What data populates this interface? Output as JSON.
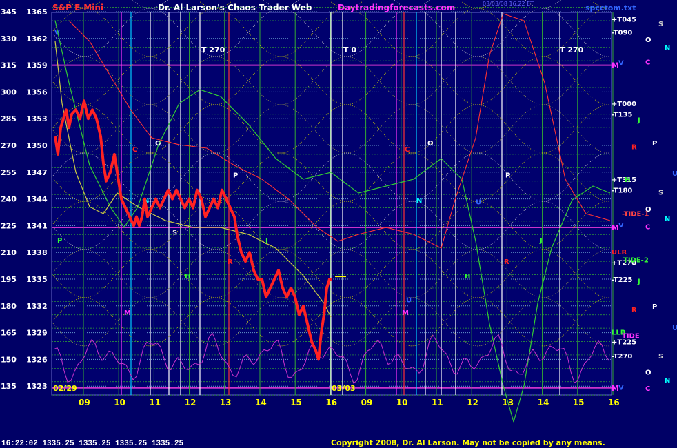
{
  "header": {
    "title_left": "S&P E-Mini",
    "title_center": "Dr. Al Larson's Chaos Trader Web",
    "title_site": "Daytradingforecasts.com",
    "title_right": "spcctom.txt",
    "timestamp": "03/03/08 16:22 ET"
  },
  "footer": {
    "quote": "16:22:02  1335.25 1335.25 1335.25 1335.25",
    "copyright": "Copyright 2008, Dr. Al Larson. May not be copied by any means."
  },
  "chart_data": {
    "type": "line",
    "x_ticks": [
      "09",
      "10",
      "11",
      "12",
      "13",
      "14",
      "15",
      "16",
      "09",
      "10",
      "11",
      "12",
      "13",
      "14",
      "15",
      "16"
    ],
    "date_labels": [
      "02/29",
      "03/03"
    ],
    "y_ticks": [
      {
        "angle": "345",
        "price": "1365"
      },
      {
        "angle": "330",
        "price": "1362"
      },
      {
        "angle": "315",
        "price": "1359"
      },
      {
        "angle": "300",
        "price": "1356"
      },
      {
        "angle": "285",
        "price": "1353"
      },
      {
        "angle": "270",
        "price": "1350"
      },
      {
        "angle": "255",
        "price": "1347"
      },
      {
        "angle": "240",
        "price": "1344"
      },
      {
        "angle": "225",
        "price": "1341"
      },
      {
        "angle": "210",
        "price": "1338"
      },
      {
        "angle": "195",
        "price": "1335"
      },
      {
        "angle": "180",
        "price": "1332"
      },
      {
        "angle": "165",
        "price": "1329"
      },
      {
        "angle": "150",
        "price": "1326"
      },
      {
        "angle": "135",
        "price": "1323"
      }
    ],
    "ylim": [
      1322,
      1366
    ],
    "vertical_labels": [
      "T 270",
      "T 0",
      "T 270"
    ],
    "right_labels": [
      {
        "text": "+T045",
        "price": 1364.2,
        "color": "#ffffff"
      },
      {
        "text": "-T090",
        "price": 1362.7,
        "color": "#ffffff"
      },
      {
        "text": "M",
        "price": 1359,
        "color": "#ff33ff"
      },
      {
        "text": "+T000",
        "price": 1354.7,
        "color": "#ffffff"
      },
      {
        "text": "-T135",
        "price": 1353.5,
        "color": "#ffffff"
      },
      {
        "text": "+T315",
        "price": 1346.2,
        "color": "#ffffff"
      },
      {
        "text": "-T180",
        "price": 1345.0,
        "color": "#ffffff"
      },
      {
        "text": "-TIDE-1",
        "price": 1342.4,
        "color": "#ff4444"
      },
      {
        "text": "M",
        "price": 1340.8,
        "color": "#ff33ff"
      },
      {
        "text": "ULR",
        "price": 1338.1,
        "color": "#ff2222"
      },
      {
        "text": "+T270",
        "price": 1336.9,
        "color": "#ffffff"
      },
      {
        "text": "TIDE-2",
        "price": 1337.2,
        "color": "#33ff33"
      },
      {
        "text": "-T225",
        "price": 1335.0,
        "color": "#ffffff"
      },
      {
        "text": "LLB",
        "price": 1329.1,
        "color": "#33ff33"
      },
      {
        "text": "TIDE",
        "price": 1328.7,
        "color": "#ff33ff"
      },
      {
        "text": "+T225",
        "price": 1328.0,
        "color": "#ffffff"
      },
      {
        "text": "-T270",
        "price": 1326.4,
        "color": "#ffffff"
      },
      {
        "text": "M",
        "price": 1322.8,
        "color": "#ff33ff"
      }
    ],
    "price_markers": [
      {
        "text": "O",
        "x": 225,
        "price": 1350.3,
        "color": "#ffffff"
      },
      {
        "text": "O",
        "x": 620,
        "price": 1350.3,
        "color": "#ffffff"
      },
      {
        "text": "P",
        "x": 338,
        "price": 1346.7,
        "color": "#ffffff"
      },
      {
        "text": "P",
        "x": 733,
        "price": 1346.7,
        "color": "#ffffff"
      },
      {
        "text": "N",
        "x": 208,
        "price": 1343.9,
        "color": "#00ffff"
      },
      {
        "text": "N",
        "x": 604,
        "price": 1343.9,
        "color": "#00ffff"
      },
      {
        "text": "C",
        "x": 192,
        "price": 1349.6,
        "color": "#ff2222"
      },
      {
        "text": "C",
        "x": 587,
        "price": 1349.6,
        "color": "#ff2222"
      },
      {
        "text": "S",
        "x": 250,
        "price": 1340.3,
        "color": "#dddddd"
      },
      {
        "text": "H",
        "x": 268,
        "price": 1335.4,
        "color": "#33ff33"
      },
      {
        "text": "H",
        "x": 674,
        "price": 1335.4,
        "color": "#33ff33"
      },
      {
        "text": "M",
        "x": 180,
        "price": 1331.3,
        "color": "#ff33ff"
      },
      {
        "text": "M",
        "x": 583,
        "price": 1331.3,
        "color": "#ff33ff"
      },
      {
        "text": "J",
        "x": 385,
        "price": 1339.4,
        "color": "#33ff33"
      },
      {
        "text": "J",
        "x": 783,
        "price": 1339.4,
        "color": "#33ff33"
      },
      {
        "text": "P",
        "x": 83,
        "price": 1339.4,
        "color": "#33ff33"
      },
      {
        "text": "R",
        "x": 330,
        "price": 1337.0,
        "color": "#ff2222"
      },
      {
        "text": "R",
        "x": 731,
        "price": 1337.0,
        "color": "#ff2222"
      },
      {
        "text": "U",
        "x": 589,
        "price": 1332.7,
        "color": "#3366ff"
      },
      {
        "text": "U",
        "x": 690,
        "price": 1343.7,
        "color": "#3366ff"
      },
      {
        "text": "V",
        "x": 79,
        "price": 1362.7,
        "color": "#3366ff"
      },
      {
        "text": "V",
        "x": 897,
        "price": 1359.3,
        "color": "#3366ff"
      },
      {
        "text": "V",
        "x": 897,
        "price": 1341.1,
        "color": "#3366ff"
      },
      {
        "text": "V",
        "x": 897,
        "price": 1322.9,
        "color": "#3366ff"
      }
    ],
    "planet_glyphs": [
      {
        "text": "S",
        "x": 955,
        "price": 1363.7,
        "color": "#cccccc"
      },
      {
        "text": "O",
        "x": 936,
        "price": 1361.9,
        "color": "#ffffff"
      },
      {
        "text": "N",
        "x": 964,
        "price": 1361.0,
        "color": "#00ffff"
      },
      {
        "text": "C",
        "x": 936,
        "price": 1359.4,
        "color": "#ff33ff"
      },
      {
        "text": "J",
        "x": 925,
        "price": 1352.9,
        "color": "#33ff33"
      },
      {
        "text": "R",
        "x": 916,
        "price": 1349.9,
        "color": "#ff2222"
      },
      {
        "text": "P",
        "x": 946,
        "price": 1350.3,
        "color": "#ffffff"
      },
      {
        "text": "U",
        "x": 975,
        "price": 1346.9,
        "color": "#3366ff"
      },
      {
        "text": "H",
        "x": 906,
        "price": 1346.2,
        "color": "#33ff33"
      },
      {
        "text": "S",
        "x": 955,
        "price": 1344.8,
        "color": "#cccccc"
      },
      {
        "text": "O",
        "x": 936,
        "price": 1342.9,
        "color": "#ffffff"
      },
      {
        "text": "N",
        "x": 964,
        "price": 1341.8,
        "color": "#00ffff"
      },
      {
        "text": "C",
        "x": 936,
        "price": 1340.9,
        "color": "#ff33ff"
      },
      {
        "text": "J",
        "x": 925,
        "price": 1334.8,
        "color": "#33ff33"
      },
      {
        "text": "R",
        "x": 916,
        "price": 1331.6,
        "color": "#ff2222"
      },
      {
        "text": "P",
        "x": 946,
        "price": 1332.0,
        "color": "#ffffff"
      },
      {
        "text": "U",
        "x": 975,
        "price": 1329.6,
        "color": "#3366ff"
      },
      {
        "text": "S",
        "x": 955,
        "price": 1326.4,
        "color": "#cccccc"
      },
      {
        "text": "O",
        "x": 936,
        "price": 1324.6,
        "color": "#ffffff"
      },
      {
        "text": "N",
        "x": 964,
        "price": 1323.7,
        "color": "#00ffff"
      },
      {
        "text": "C",
        "x": 936,
        "price": 1322.8,
        "color": "#ff33ff"
      }
    ],
    "series": [
      {
        "color": "#ff2222",
        "values": [
          [
            80,
            1351
          ],
          [
            84,
            1349
          ],
          [
            88,
            1352
          ],
          [
            92,
            1353
          ],
          [
            96,
            1354
          ],
          [
            100,
            1352
          ],
          [
            104,
            1353.5
          ],
          [
            110,
            1354
          ],
          [
            116,
            1353
          ],
          [
            122,
            1355
          ],
          [
            128,
            1353
          ],
          [
            134,
            1354
          ],
          [
            140,
            1353
          ],
          [
            146,
            1351
          ],
          [
            150,
            1348
          ],
          [
            154,
            1346
          ],
          [
            160,
            1347
          ],
          [
            166,
            1349
          ],
          [
            170,
            1347
          ],
          [
            176,
            1344
          ],
          [
            182,
            1343
          ],
          [
            188,
            1342
          ],
          [
            194,
            1341
          ],
          [
            198,
            1342
          ],
          [
            202,
            1341
          ],
          [
            206,
            1342
          ],
          [
            210,
            1344
          ],
          [
            214,
            1342
          ],
          [
            220,
            1343
          ],
          [
            226,
            1344
          ],
          [
            232,
            1343
          ],
          [
            238,
            1344
          ],
          [
            244,
            1345
          ],
          [
            250,
            1344
          ],
          [
            256,
            1345
          ],
          [
            262,
            1344
          ],
          [
            268,
            1343
          ],
          [
            274,
            1344
          ],
          [
            280,
            1343
          ],
          [
            286,
            1345
          ],
          [
            292,
            1344
          ],
          [
            298,
            1342
          ],
          [
            304,
            1343
          ],
          [
            310,
            1344
          ],
          [
            316,
            1343
          ],
          [
            322,
            1345
          ],
          [
            328,
            1344
          ],
          [
            334,
            1343
          ],
          [
            340,
            1342
          ],
          [
            344,
            1340
          ],
          [
            350,
            1338
          ],
          [
            356,
            1337
          ],
          [
            362,
            1338
          ],
          [
            368,
            1336
          ],
          [
            374,
            1335
          ],
          [
            380,
            1335
          ],
          [
            386,
            1333
          ],
          [
            392,
            1334
          ],
          [
            398,
            1335
          ],
          [
            404,
            1336
          ],
          [
            410,
            1334
          ],
          [
            416,
            1333
          ],
          [
            422,
            1334
          ],
          [
            428,
            1333
          ],
          [
            434,
            1331
          ],
          [
            440,
            1332
          ],
          [
            446,
            1330
          ],
          [
            452,
            1328
          ],
          [
            458,
            1327
          ],
          [
            462,
            1326
          ],
          [
            466,
            1329
          ],
          [
            470,
            1331
          ],
          [
            474,
            1334
          ],
          [
            478,
            1335
          ],
          [
            482,
            1335
          ]
        ]
      }
    ]
  }
}
